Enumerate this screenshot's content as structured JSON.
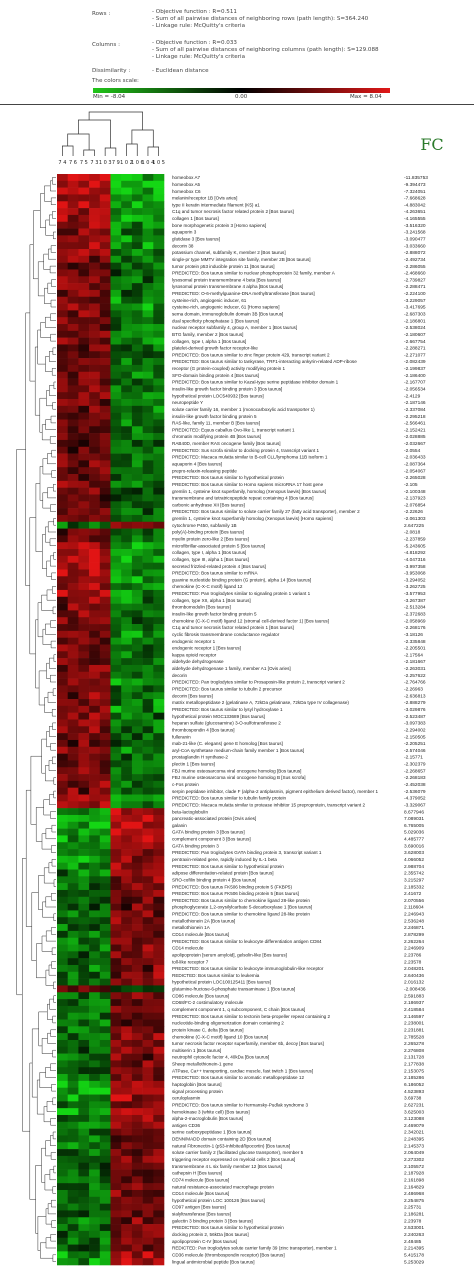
{
  "header": {
    "rows_key": "Rows :",
    "rows_lines": [
      "- Objective function : R=0.511",
      "- Sum of all pairwise distances of neighboring rows (path length): S=364.240",
      "- Linkage rule: McQuitty's criteria"
    ],
    "columns_key": "Columns :",
    "columns_lines": [
      "- Objective function : R=0.033",
      "- Sum of all pairwise distances of neighboring columns (path length): S=129.088",
      "- Linkage rule: McQuitty's criteria"
    ],
    "dissimilarity_key": "Dissimilarity :",
    "dissimilarity_value": "- Euclidean distance",
    "colors_scale_label": "The colors scale:",
    "scale_min": "Min = -8.04",
    "scale_mid": "0.00",
    "scale_max": "Max = 8.04",
    "scale_colors": [
      "#22c51a",
      "#000000",
      "#e01818"
    ]
  },
  "chart_data": {
    "type": "heatmap",
    "fc_header": "FC",
    "column_labels": [
      "7 4",
      "7 6",
      "7 5",
      "7 3",
      "1 0 3",
      "7 9",
      "1 0 2",
      "1 0 6",
      "1 0 4",
      "1 0 5"
    ],
    "rows": [
      {
        "gene": "homeobox A7",
        "fc": "-11.835753"
      },
      {
        "gene": "homeobox A5",
        "fc": "-9.394473"
      },
      {
        "gene": "homeobox C6",
        "fc": "-7.324051"
      },
      {
        "gene": "melanin/receptor 1B [Ovis aries]",
        "fc": "-7.668628"
      },
      {
        "gene": "type II keratin intermediate filament (K5) a1",
        "fc": "-4.883042"
      },
      {
        "gene": "C1q and tumor necrosis factor related protein 2 [Bos taurus]",
        "fc": "-4.263651"
      },
      {
        "gene": "collagen 1 [Bos taurus]",
        "fc": "-4.165555"
      },
      {
        "gene": "bone morphogenetic protein 3 [Homo sapiens]",
        "fc": "-3.516320"
      },
      {
        "gene": "aquaporin 3",
        "fc": "-3.241568"
      },
      {
        "gene": "glutidase 3 [Bos taurus]",
        "fc": "-3.090477"
      },
      {
        "gene": "decorin 38",
        "fc": "-3.033660"
      },
      {
        "gene": "potassium channel, subfamily K, member 2 [Bos taurus]",
        "fc": "-2.888072"
      },
      {
        "gene": "single-pr type MMTV integration site family, member 2B [Bos taurus]",
        "fc": "-2.492734"
      },
      {
        "gene": "tumor protein p53 inducible protein 11 [Bos taurus]",
        "fc": "-2.286055"
      },
      {
        "gene": "PREDICTED: Bos taurus similar to nuclear phosphoprotein 32 family, member A",
        "fc": "-2.468660"
      },
      {
        "gene": "lysosomal protein transmembrane 4 beta [Bos taurus]",
        "fc": "-2.739827"
      },
      {
        "gene": "lysosomal protein transmembrane 4 alpha [Bos taurus]",
        "fc": "-2.288471"
      },
      {
        "gene": "PREDICTED: O-6-methylguanine-DNA methyltransferase [Bos taurus]",
        "fc": "-2.224100"
      },
      {
        "gene": "cysteine-rich, angiogenic inducer, 61",
        "fc": "-3.229057"
      },
      {
        "gene": "cysteine-rich, angiogenic inducer, 61 [Homo sapiens]",
        "fc": "-3.417695"
      },
      {
        "gene": "sema domain, immunoglobulin domain 3B [Bos taurus]",
        "fc": "-2.687303"
      },
      {
        "gene": "dual specificity phosphatase 1 [Bos taurus]",
        "fc": "-2.186801"
      },
      {
        "gene": "nuclear receptor subfamily 4, group A, member 1 [Bos taurus]",
        "fc": "-2.538024"
      },
      {
        "gene": "BTG family, member 2 [Bos taurus]",
        "fc": "-2.180607"
      },
      {
        "gene": "collagen, type I, alpha 1 [Bos taurus]",
        "fc": "-2.667754"
      },
      {
        "gene": "platelet-derived growth factor receptor-like",
        "fc": "-2.288271"
      },
      {
        "gene": "PREDICTED: Bos taurus similar to zinc finger protein 429, transcript variant 2",
        "fc": "-2.271077"
      },
      {
        "gene": "PREDICTED: Bos taurus similar to tankyrase, TRF1-interacting ankyrin-related ADP-ribose",
        "fc": "-2.082439"
      },
      {
        "gene": "receptor (G protein-coupled) activity modifying protein 1",
        "fc": "-2.199837"
      },
      {
        "gene": "SFO-domain binding protein 4 [Bos taurus]",
        "fc": "-2.186400"
      },
      {
        "gene": "PREDICTED: Bos taurus similar to Kazal-type serine peptidase inhibitor domain 1",
        "fc": "-2.167707"
      },
      {
        "gene": "insulin-like growth factor binding protein 3 [Bos taurus]",
        "fc": "-2.056534"
      },
      {
        "gene": "hypothetical protein LOC540932 [Bos taurus]",
        "fc": "-2.4129"
      },
      {
        "gene": "neuropeptide Y",
        "fc": "-2.187146"
      },
      {
        "gene": "solute carrier family 16, member 1 (monocarboxylic acid transporter 1)",
        "fc": "-2.337084"
      },
      {
        "gene": "insulin-like growth factor binding protein 5",
        "fc": "-2.295218"
      },
      {
        "gene": "RAS-like, family 11, member B [Bos taurus]",
        "fc": "-2.566461"
      },
      {
        "gene": "PREDICTED: Equus caballus Ovo-like 1, transcript variant 1",
        "fc": "-2.152421"
      },
      {
        "gene": "chromatin modifying protein 4B [Bos taurus]",
        "fc": "-2.028885"
      },
      {
        "gene": "RAB40D, member RAS oncogene family [Bos taurus]",
        "fc": "-2.032667"
      },
      {
        "gene": "PREDICTED: Sus scrofa similar to docking protein 4, transcript variant 1",
        "fc": "-2.0554"
      },
      {
        "gene": "PREDICTED: Macaca mulatta similar to B-cell CLL/lymphoma 11B isoform 1",
        "fc": "-2.036433"
      },
      {
        "gene": "aquaporin 4 [Bos taurus]",
        "fc": "-2.087364"
      },
      {
        "gene": "prepro-relaxin-releasing peptide",
        "fc": "-2.054067"
      },
      {
        "gene": "PREDICTED: Bos taurus similar to hypothetical protein",
        "fc": "-2.265028"
      },
      {
        "gene": "PREDICTED: Bos taurus similar to Homo sapiens microRNA 17 host gene",
        "fc": "-2.105"
      },
      {
        "gene": "gremlin 1, cysteine knot superfamily, homolog (Xenopus laevis) [Bos taurus]",
        "fc": "-2.100348"
      },
      {
        "gene": "transmembrane and tetratricopeptide repeat containing 4 [Bos taurus]",
        "fc": "-2.137923"
      },
      {
        "gene": "carbonic anhydrase XII [Bos taurus]",
        "fc": "-2.076854"
      },
      {
        "gene": "PREDICTED: Bos taurus similar to solute carrier family 27 (fatty acid transporter), member 2",
        "fc": "-2.22626"
      },
      {
        "gene": "gremlin 1, cysteine knot superfamily homolog (Xenopus laevis) [Homo sapiens]",
        "fc": "-2.061303"
      },
      {
        "gene": "cytochrome P450, subfamily 1B",
        "fc": "2.647225"
      },
      {
        "gene": "poly(A)-binding protein [Bos taurus]",
        "fc": "-2.0818"
      },
      {
        "gene": "myelin protein zero-like 2 [Bos taurus]",
        "fc": "-2.237859"
      },
      {
        "gene": "microfibrillar-associated protein 5 [Bos taurus]",
        "fc": "-5.243605"
      },
      {
        "gene": "collagen, type I, alpha 1 [Bos taurus]",
        "fc": "-4.818292"
      },
      {
        "gene": "collagen, type III, alpha 1 [Bos taurus]",
        "fc": "-4.047316"
      },
      {
        "gene": "secreted frizzled-related protein 4 [Bos taurus]",
        "fc": "-3.997358"
      },
      {
        "gene": "PREDICTED: Bos taurus similar to mRNA",
        "fc": "-3.953068"
      },
      {
        "gene": "guanine nucleotide binding protein (G protein), alpha 14 [Bos taurus]",
        "fc": "-3.294052"
      },
      {
        "gene": "chemokine (C-X-C motif) ligand 12",
        "fc": "-3.262725"
      },
      {
        "gene": "PREDICTED: Pan troglodytes similar to signaling protein 1 variant 1",
        "fc": "-3.577953"
      },
      {
        "gene": "collagen, type XII, alpha 1 [Bos taurus]",
        "fc": "-3.267387"
      },
      {
        "gene": "thrombomodulin [Bos taurus]",
        "fc": "-2.513284"
      },
      {
        "gene": "insulin-like growth factor binding protein 5",
        "fc": "-2.372683"
      },
      {
        "gene": "chemokine (C-X-C motif) ligand 12 (stromal cell-derived factor 1) [Bos taurus]",
        "fc": "-2.058969"
      },
      {
        "gene": "C1q and tumor necrosis factor related protein 1 [Bos taurus]",
        "fc": "-2.268176"
      },
      {
        "gene": "cyclic fibrosis transmembrane conductance regulator",
        "fc": "-3.18126"
      },
      {
        "gene": "endogenic receptor 1",
        "fc": "-2.335848"
      },
      {
        "gene": "endogenic receptor 1 [Bos taurus]",
        "fc": "-2.205501"
      },
      {
        "gene": "kappa opioid receptor",
        "fc": "-2.17564"
      },
      {
        "gene": "aldehyde dehydrogenase",
        "fc": "-2.181667"
      },
      {
        "gene": "aldehyde dehydrogenase 1 family, member A1 [Ovis aries]",
        "fc": "-2.263031"
      },
      {
        "gene": "decorin",
        "fc": "-2.257622"
      },
      {
        "gene": "PREDICTED: Pan troglodytes similar to Prosaposin-like protein 2, transcript variant 2",
        "fc": "-2.764766"
      },
      {
        "gene": "PREDICTED: Bos taurus similar to tubulin 2 precursor",
        "fc": "-2.26963"
      },
      {
        "gene": "decorin [Bos taurus]",
        "fc": "-2.636813"
      },
      {
        "gene": "matrix metallopeptidase 2 (gelatinase A, 72kDa gelatinase, 72kDa type IV collagenase)",
        "fc": "-2.888279"
      },
      {
        "gene": "PREDICTED: Bos taurus similar to lysyl hydroxylase 1",
        "fc": "-3.029876"
      },
      {
        "gene": "hypothetical protein MGC133689 [Bos taurus]",
        "fc": "-2.523487"
      },
      {
        "gene": "heparan sulfate (glucosamine) 3-O-sulfotransferase 2",
        "fc": "-3.097383"
      },
      {
        "gene": "thrombospondin 4 [Bos taurus]",
        "fc": "-2.294002"
      },
      {
        "gene": "fulleranin",
        "fc": "-2.150505"
      },
      {
        "gene": "mab-21-like (C. elegans) gene E homolog [Bos taurus]",
        "fc": "-2.205251"
      },
      {
        "gene": "aryl-CoA synthetase medium-chain family member 1 [Bos taurus]",
        "fc": "-2.574046"
      },
      {
        "gene": "prostaglandin H synthase-2",
        "fc": "-2.15771"
      },
      {
        "gene": "plectin 1 [Bos taurus]",
        "fc": "-2.302379"
      },
      {
        "gene": "FBJ murine osteosarcoma viral oncogene homolog [Bos taurus]",
        "fc": "-2.268657"
      },
      {
        "gene": "FBJ murine osteosarcoma viral oncogene homolog B [Sus scrofa]",
        "fc": "-2.268183"
      },
      {
        "gene": "c-Fos protein",
        "fc": "-2.452038"
      },
      {
        "gene": "serpin peptidase inhibitor, clade F (alpha-2 antiplasmin, pigment epithelium derived factor), member 1",
        "fc": "-2.536079"
      },
      {
        "gene": "PREDICTED: Bos taurus similar to tubulin family protein",
        "fc": "-4.379052"
      },
      {
        "gene": "PREDICTED: Macaca mulatta similar to protease inhibitor 15 preproprotein, transcript variant 2",
        "fc": "-3.329067"
      },
      {
        "gene": "beta-lactoglobulin",
        "fc": "8.677946"
      },
      {
        "gene": "pancreatic-associated protein [Ovis aries]",
        "fc": "7.089031"
      },
      {
        "gene": "galanin",
        "fc": "6.765005"
      },
      {
        "gene": "GATA binding protein 3 [Bos taurus]",
        "fc": "5.029036"
      },
      {
        "gene": "complement component 3 [Bos taurus]",
        "fc": "4.485777"
      },
      {
        "gene": "GATA binding protein 3",
        "fc": "3.690016"
      },
      {
        "gene": "PREDICTED: Pan troglodytes GATA binding protein 3, transcript variant 1",
        "fc": "3.628003"
      },
      {
        "gene": "pentraxin-related gene, rapidly induced by IL-1 beta",
        "fc": "4.066052"
      },
      {
        "gene": "PREDICTED: Bos taurus similar to hypothetical protein",
        "fc": "2.988704"
      },
      {
        "gene": "adipose differentiation-related protein [Bos taurus]",
        "fc": "2.355742"
      },
      {
        "gene": "SRO-cofilin binding protein 4 [Bos taurus]",
        "fc": "3.215297"
      },
      {
        "gene": "PREDICTED: Bos taurus FK506 binding protein 5 (FKBP5)",
        "fc": "2.185332"
      },
      {
        "gene": "PREDICTED: Bos taurus FK506 binding protein 5 [Bos taurus]",
        "fc": "2.41672"
      },
      {
        "gene": "PREDICTED: Bos taurus similar to chemokine ligand 28-like protein",
        "fc": "2.070556"
      },
      {
        "gene": "phosphoglycerate 1,2-oxysilylcarbate 5-decarboxylase 1 [Bos taurus]",
        "fc": "2.118604"
      },
      {
        "gene": "PREDICTED: Bos taurus similar to chemokine ligand 28-like protein",
        "fc": "2.246943"
      },
      {
        "gene": "metallothionein 2A [Bos taurus]",
        "fc": "2.536248"
      },
      {
        "gene": "metallothionein 1A",
        "fc": "2.246871"
      },
      {
        "gene": "CD14 molecule [Bos taurus]",
        "fc": "2.878299"
      },
      {
        "gene": "PREDICTED: Bos taurus similar to leukocyte differentiation antigen CD84",
        "fc": "2.262264"
      },
      {
        "gene": "CD14 molecule",
        "fc": "2.246909"
      },
      {
        "gene": "apolipoprotein [serum amyloid], gelsolin-like [Bos taurus]",
        "fc": "2.23786"
      },
      {
        "gene": "toll-like receptor 7",
        "fc": "2.23578"
      },
      {
        "gene": "PREDICTED: Bos taurus similar to leukocyte immunoglobulin-like receptor",
        "fc": "2.048201"
      },
      {
        "gene": "REDICTED: Bos taurus similar to leukemia",
        "fc": "2.640436"
      },
      {
        "gene": "hypothetical protein LOC100125411 [Bos taurus]",
        "fc": "2.016132"
      },
      {
        "gene": "glutamine-fructose-6-phosphate transaminase 1 [Bos taurus]",
        "fc": "-2.008436"
      },
      {
        "gene": "CD86 molecule [Bos taurus]",
        "fc": "2.591883"
      },
      {
        "gene": "CD68/FC-2 costimulatory molecule",
        "fc": "2.186937"
      },
      {
        "gene": "complement component 1, q subcomponent, C chain [Bos taurus]",
        "fc": "2.418584"
      },
      {
        "gene": "PREDICTED: Bos taurus similar to tectonin beta-propeller repeat containing 2",
        "fc": "2.146597"
      },
      {
        "gene": "nucleotide-binding oligomerization domain containing 2",
        "fc": "2.238001"
      },
      {
        "gene": "protein kinase C, delta [Bos taurus]",
        "fc": "2.231881"
      },
      {
        "gene": "chemokine (C-X-C motif) ligand 10 [Bos taurus]",
        "fc": "2.785528"
      },
      {
        "gene": "tumor necrosis factor receptor superfamily, member 6b, decoy [Bos taurus]",
        "fc": "2.265278"
      },
      {
        "gene": "multiserin 1 [Bos taurus]",
        "fc": "2.276808"
      },
      {
        "gene": "neutrophil cytosolic factor 4, 40kDa [Bos taurus]",
        "fc": "2.131728"
      },
      {
        "gene": "Sheep metallothionein-1 gene",
        "fc": "2.177838"
      },
      {
        "gene": "ATPase, Ca++ transporting, cardiac muscle, fast twitch 1 [Bos taurus]",
        "fc": "2.153075"
      },
      {
        "gene": "PREDICTED: Bos taurus similar to aromatic metallopeptidase 12",
        "fc": "2.185286"
      },
      {
        "gene": "haptoglobin [Bos taurus]",
        "fc": "6.186052"
      },
      {
        "gene": "signal processing protein",
        "fc": "4.523893"
      },
      {
        "gene": "ceruloplasmin",
        "fc": "3.69738"
      },
      {
        "gene": "PREDICTED: Bos taurus similar to Hermansky-Pudlak syndrome 3",
        "fc": "2.627231"
      },
      {
        "gene": "hemokinase 3 (white cell) [Bos taurus]",
        "fc": "3.625003"
      },
      {
        "gene": "alpha-2-macroglobulin [Bos taurus]",
        "fc": "3.123088"
      },
      {
        "gene": "antigen CD36",
        "fc": "2.469079"
      },
      {
        "gene": "serine carboxypeptidase 1 [Bos taurus]",
        "fc": "2.342021"
      },
      {
        "gene": "DENN/MADD domain containing 2D [Bos taurus]",
        "fc": "2.248395"
      },
      {
        "gene": "natural Fibronectin-1 (p53-inhibited/lipocortin) [Bos taurus]",
        "fc": "2.145373"
      },
      {
        "gene": "solute carrier family 2 (facilitated glucose transporter), member 5",
        "fc": "2.064049"
      },
      {
        "gene": "triggering receptor expressed on myeloid cells 2 [Bos taurus]",
        "fc": "2.273302"
      },
      {
        "gene": "transmembrane 4 L six family member 12 [Bos taurus]",
        "fc": "2.105572"
      },
      {
        "gene": "cathepsin H [Bos taurus]",
        "fc": "2.187928"
      },
      {
        "gene": "CD74 molecule [Bos taurus]",
        "fc": "2.161898"
      },
      {
        "gene": "natural resistance-associated macrophage protein",
        "fc": "2.164829"
      },
      {
        "gene": "CD14 molecule [Bos taurus]",
        "fc": "2.486968"
      },
      {
        "gene": "hypothetical protein LOC 100126 [Bos taurus]",
        "fc": "2.254875"
      },
      {
        "gene": "CD97 antigen [Bos taurus]",
        "fc": "2.25731"
      },
      {
        "gene": "sialyltransferase [Bos taurus]",
        "fc": "2.186281"
      },
      {
        "gene": "galectin 3 binding protein 3 [Bos taurus]",
        "fc": "2.23978"
      },
      {
        "gene": "PREDICTED: Bos taurus similar to hypothetical protein",
        "fc": "2.533001"
      },
      {
        "gene": "docking protein 2, 56kDa [Bos taurus]",
        "fc": "2.240263"
      },
      {
        "gene": "apolipoprotein C-IV [Bos taurus]",
        "fc": "2.48485"
      },
      {
        "gene": "REDICTED: Pan troglodytes solute carrier family 39 (zinc transporter), member 1",
        "fc": "2.214395"
      },
      {
        "gene": "CD36 molecule (thrombospondin receptor) [Bos taurus]",
        "fc": "5.415178"
      },
      {
        "gene": "lingual antimicrobial peptide [Bos taurus]",
        "fc": "5.253029"
      }
    ]
  }
}
